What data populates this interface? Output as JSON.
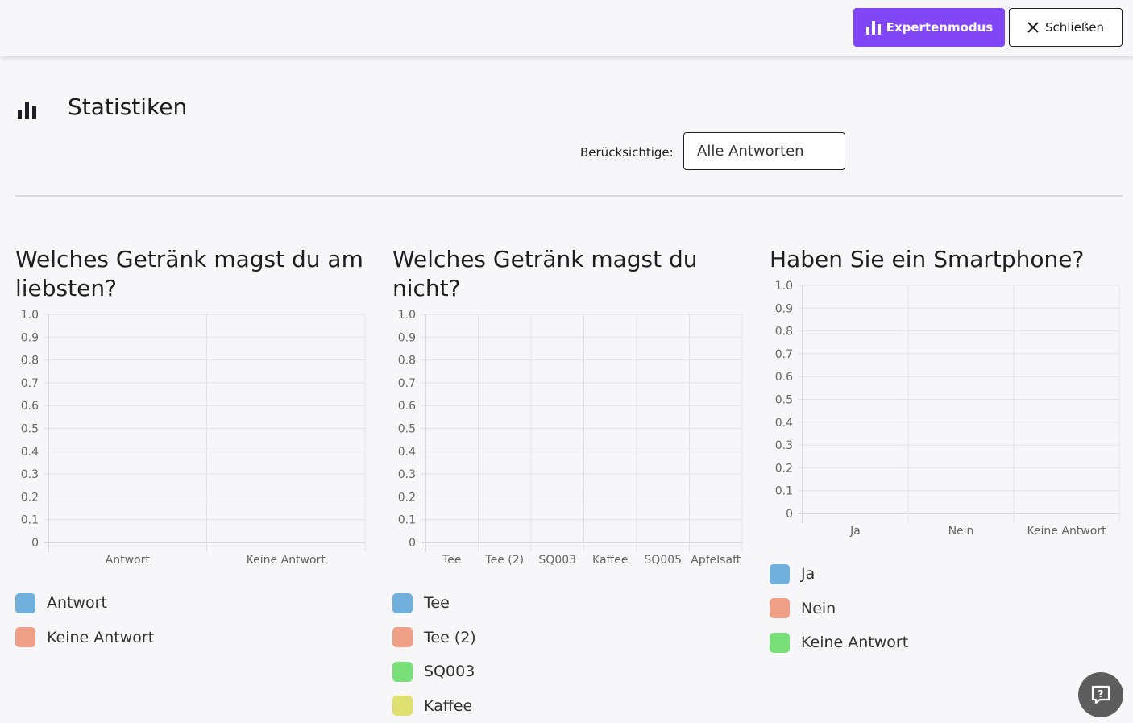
{
  "header": {
    "expert_button": "Expertenmodus",
    "close_button": "Schließen"
  },
  "page": {
    "title": "Statistiken",
    "filter_label": "Berücksichtige:",
    "filter_value": "Alle Antworten"
  },
  "colors": {
    "accent": "#8146f6",
    "series": [
      "#6fb0dc",
      "#ef9f85",
      "#78de78",
      "#e0e070"
    ]
  },
  "charts": [
    {
      "question": "Welches Getränk magst du am liebsten?",
      "legend": [
        "Antwort",
        "Keine Antwort"
      ]
    },
    {
      "question": "Welches Getränk magst du nicht?",
      "legend": [
        "Tee",
        "Tee (2)",
        "SQ003",
        "Kaffee"
      ]
    },
    {
      "question": "Haben Sie ein Smartphone?",
      "legend": [
        "Ja",
        "Nein",
        "Keine Antwort"
      ]
    }
  ],
  "chart_data": [
    {
      "type": "bar",
      "title": "Welches Getränk magst du am liebsten?",
      "categories": [
        "Antwort",
        "Keine Antwort"
      ],
      "values": [
        0,
        0
      ],
      "yticks": [
        "0",
        "0.1",
        "0.2",
        "0.3",
        "0.4",
        "0.5",
        "0.6",
        "0.7",
        "0.8",
        "0.9",
        "1.0"
      ],
      "ylim": [
        0,
        1
      ],
      "grid": true
    },
    {
      "type": "bar",
      "title": "Welches Getränk magst du nicht?",
      "categories": [
        "Tee",
        "Tee (2)",
        "SQ003",
        "Kaffee",
        "SQ005",
        "Apfelsaft"
      ],
      "values": [
        0,
        0,
        0,
        0,
        0,
        0
      ],
      "yticks": [
        "0",
        "0.1",
        "0.2",
        "0.3",
        "0.4",
        "0.5",
        "0.6",
        "0.7",
        "0.8",
        "0.9",
        "1.0"
      ],
      "ylim": [
        0,
        1
      ],
      "grid": true
    },
    {
      "type": "bar",
      "title": "Haben Sie ein Smartphone?",
      "categories": [
        "Ja",
        "Nein",
        "Keine Antwort"
      ],
      "values": [
        0,
        0,
        0
      ],
      "yticks": [
        "0",
        "0.1",
        "0.2",
        "0.3",
        "0.4",
        "0.5",
        "0.6",
        "0.7",
        "0.8",
        "0.9",
        "1.0"
      ],
      "ylim": [
        0,
        1
      ],
      "grid": true
    }
  ],
  "icons": {
    "expert": "bar-chart-icon",
    "close": "close-icon",
    "page": "bar-chart-icon",
    "help": "help-icon"
  }
}
